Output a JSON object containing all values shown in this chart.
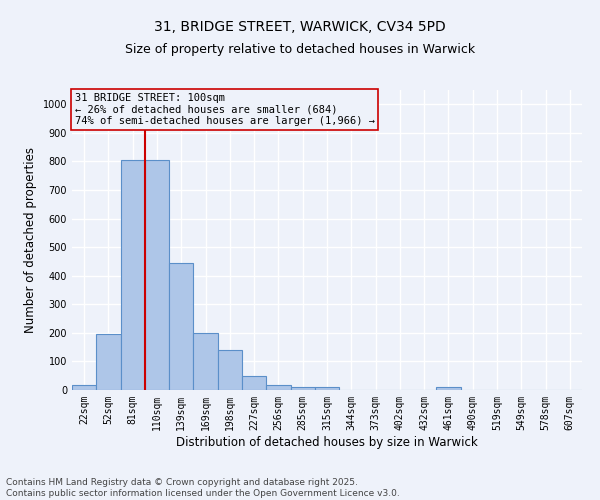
{
  "title_line1": "31, BRIDGE STREET, WARWICK, CV34 5PD",
  "title_line2": "Size of property relative to detached houses in Warwick",
  "xlabel": "Distribution of detached houses by size in Warwick",
  "ylabel": "Number of detached properties",
  "categories": [
    "22sqm",
    "52sqm",
    "81sqm",
    "110sqm",
    "139sqm",
    "169sqm",
    "198sqm",
    "227sqm",
    "256sqm",
    "285sqm",
    "315sqm",
    "344sqm",
    "373sqm",
    "402sqm",
    "432sqm",
    "461sqm",
    "490sqm",
    "519sqm",
    "549sqm",
    "578sqm",
    "607sqm"
  ],
  "values": [
    18,
    195,
    805,
    805,
    445,
    200,
    140,
    50,
    18,
    12,
    10,
    0,
    0,
    0,
    0,
    10,
    0,
    0,
    0,
    0,
    0
  ],
  "bar_color": "#aec6e8",
  "bar_edge_color": "#5b8fc9",
  "bar_edge_width": 0.8,
  "vline_color": "#cc0000",
  "vline_x_index": 2.5,
  "annotation_title": "31 BRIDGE STREET: 100sqm",
  "annotation_line1": "← 26% of detached houses are smaller (684)",
  "annotation_line2": "74% of semi-detached houses are larger (1,966) →",
  "annotation_box_color": "#cc0000",
  "ylim": [
    0,
    1050
  ],
  "yticks": [
    0,
    100,
    200,
    300,
    400,
    500,
    600,
    700,
    800,
    900,
    1000
  ],
  "footer_line1": "Contains HM Land Registry data © Crown copyright and database right 2025.",
  "footer_line2": "Contains public sector information licensed under the Open Government Licence v3.0.",
  "background_color": "#eef2fa",
  "grid_color": "#ffffff",
  "title_fontsize": 10,
  "subtitle_fontsize": 9,
  "axis_label_fontsize": 8.5,
  "tick_fontsize": 7,
  "annotation_fontsize": 7.5,
  "footer_fontsize": 6.5
}
